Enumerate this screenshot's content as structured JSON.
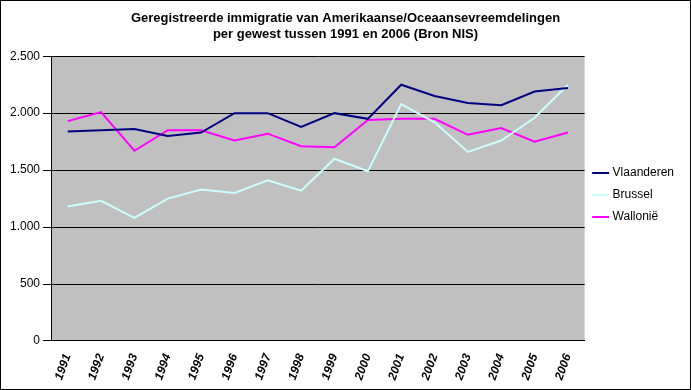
{
  "chart_data": {
    "type": "line",
    "title": [
      "Geregistreerde immigratie van Amerikaanse/Oceaansevreemdelingen",
      "per gewest tussen 1991 en 2006 (Bron NIS)"
    ],
    "categories": [
      "1991",
      "1992",
      "1993",
      "1994",
      "1995",
      "1996",
      "1997",
      "1998",
      "1999",
      "2000",
      "2001",
      "2002",
      "2003",
      "2004",
      "2005",
      "2006"
    ],
    "series": [
      {
        "name": "Vlaanderen",
        "color": "#000080",
        "values": [
          1840,
          1850,
          1860,
          1800,
          1830,
          2000,
          2000,
          1880,
          2000,
          1950,
          2250,
          2150,
          2090,
          2070,
          2190,
          2220
        ]
      },
      {
        "name": "Brussel",
        "color": "#ccffff",
        "values": [
          1180,
          1230,
          1080,
          1250,
          1330,
          1300,
          1410,
          1320,
          1600,
          1490,
          2080,
          1920,
          1660,
          1760,
          1960,
          2250
        ]
      },
      {
        "name": "Wallonië",
        "color": "#ff00ff",
        "values": [
          1930,
          2010,
          1670,
          1850,
          1850,
          1760,
          1820,
          1710,
          1700,
          1940,
          1950,
          1950,
          1810,
          1870,
          1750,
          1830
        ]
      }
    ],
    "ylim": [
      0,
      2500
    ],
    "yticks": [
      0,
      500,
      {
        "value": 1000,
        "label": "1.000"
      },
      {
        "value": 1500,
        "label": "1.500"
      },
      {
        "value": 2000,
        "label": "2.000"
      },
      {
        "value": 2500,
        "label": "2.500"
      }
    ],
    "grid": true,
    "legend": "right"
  }
}
